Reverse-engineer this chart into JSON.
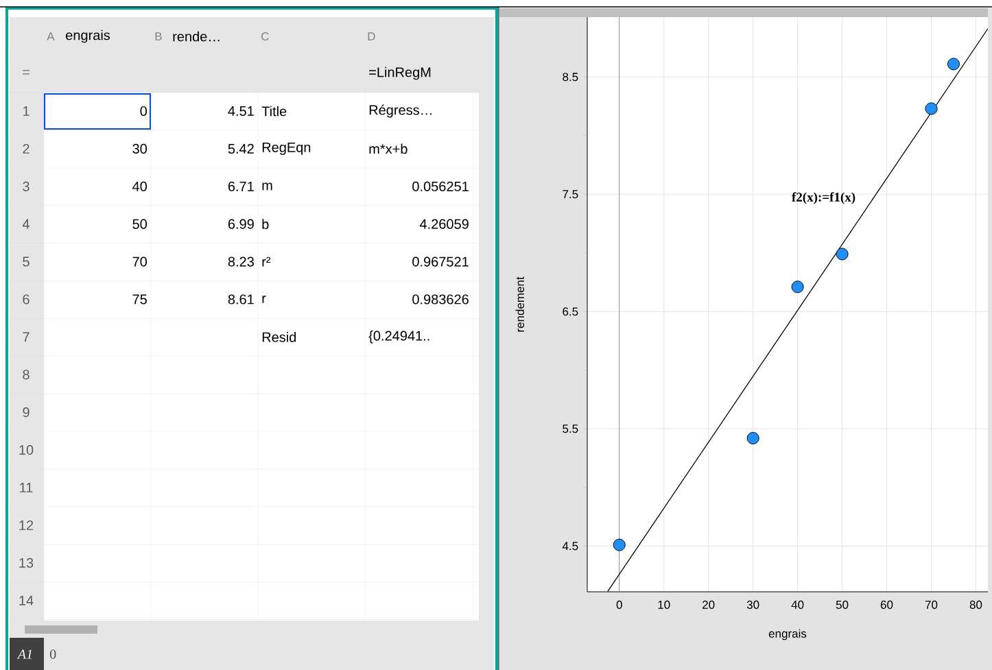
{
  "chart_data": {
    "type": "scatter",
    "xlabel": "engrais",
    "ylabel": "rendement",
    "series": [
      {
        "x": [
          0,
          30,
          40,
          50,
          70,
          75
        ],
        "values": [
          4.51,
          5.42,
          6.71,
          6.99,
          8.23,
          8.61
        ],
        "color": "#1e8fff",
        "marker": "circle"
      },
      {
        "type": "line",
        "x": [
          -2.6,
          82.7
        ],
        "values": [
          4.114,
          8.912
        ],
        "color": "#000000",
        "marker": "none"
      }
    ],
    "xlim": [
      -7.2,
      82.7
    ],
    "ylim": [
      4.11,
      9.01
    ],
    "xticks": [
      0,
      10,
      20,
      30,
      40,
      50,
      60,
      70,
      80
    ],
    "yticks": [
      4.5,
      {
        "value": 5,
        "label": null
      },
      5.5,
      {
        "value": 6,
        "label": null
      },
      6.5,
      {
        "value": 7,
        "label": null
      },
      7.5,
      {
        "value": 8,
        "label": null
      },
      8.5
    ],
    "grid": true,
    "line_style": "solid",
    "ref_lines": [
      {
        "axis": "x",
        "value": 0,
        "color": "#808080"
      }
    ],
    "annotations": [
      "A",
      "engrais",
      "B",
      "rende…",
      "C",
      "D",
      "=",
      "=LinRegM",
      "Title",
      "Régress…",
      "RegEqn",
      "m*x+b",
      "m",
      "0.056251",
      "b",
      "4.26059",
      "r²",
      "0.967521",
      "r",
      "0.983626",
      "Resid",
      "{0.24941..",
      "1",
      "2",
      "3",
      "4",
      "5",
      "6",
      "7",
      "8",
      "9",
      "10",
      "11",
      "12",
      "13",
      "14",
      "A1",
      "0",
      "f2(x):=f1(x)",
      "0",
      "30",
      "40",
      "50",
      "70",
      "75",
      "4.51",
      "5.42",
      "6.71",
      "6.99",
      "8.23",
      "8.61"
    ]
  }
}
